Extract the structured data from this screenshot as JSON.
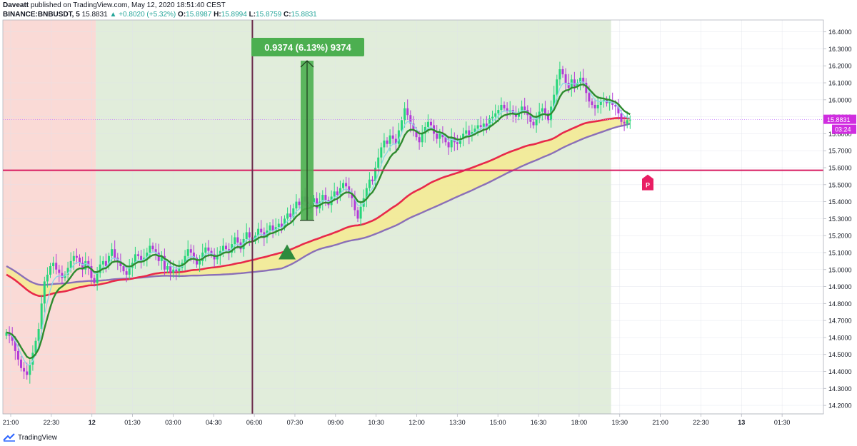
{
  "header": {
    "author": "Daveatt",
    "published_text": "published on TradingView.com, May 12, 2020 18:51:40 CEST",
    "symbol": "BINANCE:BNBUSDT, 5",
    "last": "15.8831",
    "change": "+0.8020 (+5.32%)",
    "o_label": "O:",
    "o_value": "15.8987",
    "h_label": "H:",
    "h_value": "15.8994",
    "l_label": "L:",
    "l_value": "15.8759",
    "c_label": "C:",
    "c_value": "15.8831"
  },
  "footer": {
    "brand": "TradingView",
    "icon": "tradingview-logo-icon"
  },
  "colors": {
    "up": "#26d67a",
    "down": "#b23ad6",
    "session_red": "#fadad6",
    "session_green": "#e1eddb",
    "fast_ma": "#2e8b2e",
    "light_ma": "#8ed8e8",
    "red_ma": "#e8294a",
    "purple_ma": "#8a6fb8",
    "fill": "#f5ea91",
    "level_line": "#d81b60",
    "measure": "#4caf50",
    "cursor": "#6b2a4a",
    "pivot": "#e91e63"
  },
  "chart_data": {
    "type": "candlestick",
    "symbol": "BINANCE:BNBUSDT",
    "interval": "5",
    "ylim": [
      14.15,
      16.47
    ],
    "y_ticks": [
      "16.4000",
      "16.3000",
      "16.2000",
      "16.1000",
      "16.0000",
      "15.9000",
      "15.8000",
      "15.7000",
      "15.6000",
      "15.5000",
      "15.4000",
      "15.3000",
      "15.2000",
      "15.1000",
      "15.0000",
      "14.9000",
      "14.8000",
      "14.7000",
      "14.6000",
      "14.5000",
      "14.4000",
      "14.3000",
      "14.2000"
    ],
    "x_ticks": [
      "21:00",
      "22:30",
      "12",
      "01:30",
      "03:00",
      "04:30",
      "06:00",
      "07:30",
      "09:00",
      "10:30",
      "12:00",
      "13:30",
      "15:00",
      "16:30",
      "18:00",
      "19:30",
      "21:00",
      "22:30",
      "13",
      "01:30"
    ],
    "price_label": "15.8831",
    "countdown_label": "03:24",
    "horizontal_level": 15.585,
    "measure_label": "0.9374 (6.13%) 9374",
    "measure_from": 15.29,
    "measure_to": 16.23,
    "pivot_label": "P",
    "sessions": [
      {
        "name": "red",
        "from_bar": 0,
        "to_bar": 31
      },
      {
        "name": "green",
        "from_bar": 31,
        "to_bar": 207
      }
    ],
    "cursor_bar": 84,
    "close": [
      14.63,
      14.61,
      14.58,
      14.52,
      14.47,
      14.42,
      14.4,
      14.38,
      14.44,
      14.51,
      14.58,
      14.65,
      14.8,
      14.93,
      14.97,
      15.02,
      15.04,
      15.0,
      14.98,
      14.95,
      14.97,
      15.01,
      15.05,
      15.08,
      15.07,
      15.04,
      15.0,
      15.05,
      15.02,
      14.95,
      14.92,
      14.98,
      15.03,
      15.05,
      15.02,
      15.08,
      15.12,
      15.07,
      15.05,
      15.02,
      14.99,
      14.97,
      15.01,
      15.04,
      15.09,
      15.08,
      15.05,
      15.07,
      15.1,
      15.14,
      15.12,
      15.1,
      15.05,
      15.08,
      15.0,
      15.02,
      14.98,
      15.0,
      14.99,
      15.01,
      15.04,
      15.08,
      15.12,
      15.1,
      15.07,
      15.03,
      15.05,
      15.1,
      15.13,
      15.11,
      15.09,
      15.06,
      15.08,
      15.11,
      15.14,
      15.12,
      15.1,
      15.15,
      15.19,
      15.16,
      15.12,
      15.18,
      15.22,
      15.19,
      15.17,
      15.2,
      15.24,
      15.22,
      15.19,
      15.23,
      15.26,
      15.23,
      15.25,
      15.27,
      15.25,
      15.3,
      15.33,
      15.31,
      15.36,
      15.4,
      15.38,
      15.43,
      15.4,
      15.37,
      15.39,
      15.42,
      15.36,
      15.4,
      15.44,
      15.41,
      15.38,
      15.43,
      15.46,
      15.44,
      15.48,
      15.51,
      15.49,
      15.45,
      15.42,
      15.35,
      15.3,
      15.37,
      15.42,
      15.48,
      15.53,
      15.52,
      15.6,
      15.66,
      15.72,
      15.76,
      15.74,
      15.79,
      15.77,
      15.74,
      15.82,
      15.88,
      15.95,
      15.91,
      15.86,
      15.82,
      15.78,
      15.75,
      15.8,
      15.84,
      15.87,
      15.85,
      15.8,
      15.77,
      15.8,
      15.78,
      15.75,
      15.72,
      15.78,
      15.75,
      15.74,
      15.77,
      15.8,
      15.82,
      15.79,
      15.81,
      15.83,
      15.85,
      15.84,
      15.86,
      15.84,
      15.89,
      15.9,
      15.92,
      15.94,
      15.97,
      15.95,
      15.93,
      15.94,
      15.92,
      15.9,
      15.93,
      15.96,
      15.94,
      15.91,
      15.87,
      15.85,
      15.89,
      15.93,
      15.95,
      15.92,
      15.88,
      15.96,
      16.03,
      16.12,
      16.18,
      16.15,
      16.1,
      16.07,
      16.12,
      16.08,
      16.1,
      16.13,
      16.1,
      16.04,
      15.99,
      15.97,
      15.95,
      15.97,
      15.99,
      16.0,
      15.98,
      15.99,
      15.97,
      15.96,
      15.92,
      15.87,
      15.86,
      15.88,
      15.88
    ]
  }
}
